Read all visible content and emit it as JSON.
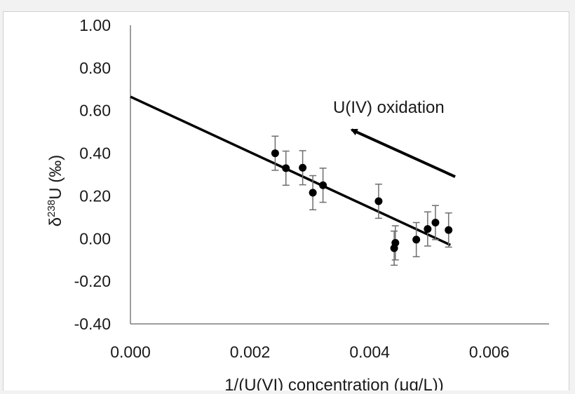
{
  "chart_data": {
    "type": "scatter",
    "title": "",
    "xlabel": "1/(U(VI) concentration (μg/L))",
    "ylabel_parts": {
      "prefix": "δ",
      "superscript": "238",
      "suffix": "U (‰)"
    },
    "xlim": [
      0.0,
      0.007
    ],
    "ylim": [
      -0.4,
      1.0
    ],
    "x_tick_labels": [
      "0.000",
      "0.002",
      "0.004",
      "0.006"
    ],
    "x_ticks": [
      0.0,
      0.002,
      0.004,
      0.006
    ],
    "y_tick_labels": [
      "1.00",
      "0.80",
      "0.60",
      "0.40",
      "0.20",
      "0.00",
      "-0.20",
      "-0.40"
    ],
    "y_ticks": [
      1.0,
      0.8,
      0.6,
      0.4,
      0.2,
      0.0,
      -0.2,
      -0.4
    ],
    "grid": false,
    "series": [
      {
        "points": [
          {
            "x": 0.00242,
            "y": 0.4,
            "err": 0.08
          },
          {
            "x": 0.0026,
            "y": 0.33,
            "err": 0.08
          },
          {
            "x": 0.00288,
            "y": 0.332,
            "err": 0.08
          },
          {
            "x": 0.00305,
            "y": 0.215,
            "err": 0.08
          },
          {
            "x": 0.00322,
            "y": 0.25,
            "err": 0.08
          },
          {
            "x": 0.00415,
            "y": 0.175,
            "err": 0.08
          },
          {
            "x": 0.00441,
            "y": -0.045,
            "err": 0.08
          },
          {
            "x": 0.00443,
            "y": -0.02,
            "err": 0.08
          },
          {
            "x": 0.00478,
            "y": -0.005,
            "err": 0.08
          },
          {
            "x": 0.00497,
            "y": 0.045,
            "err": 0.08
          },
          {
            "x": 0.0051,
            "y": 0.075,
            "err": 0.08
          },
          {
            "x": 0.00532,
            "y": 0.04,
            "err": 0.08
          }
        ],
        "color": "#000000"
      }
    ],
    "trendline": {
      "x": [
        0.0,
        0.00535
      ],
      "y": [
        0.665,
        -0.03
      ],
      "color": "#000000"
    },
    "annotation": {
      "text": "U(IV) oxidation",
      "arrow_from": {
        "x": 0.00543,
        "y": 0.29
      },
      "arrow_to": {
        "x": 0.0037,
        "y": 0.51
      }
    }
  }
}
